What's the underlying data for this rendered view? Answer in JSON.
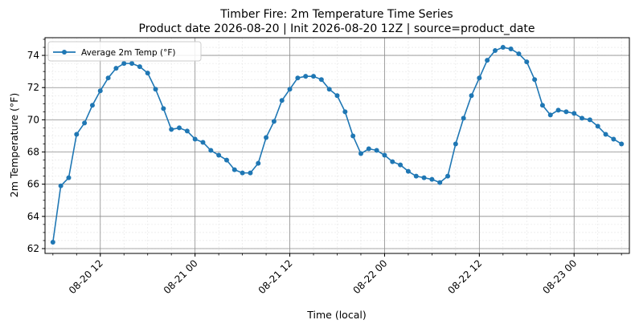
{
  "chart_data": {
    "type": "line",
    "title": "Timber Fire: 2m Temperature Time Series",
    "subtitle": "Product date 2026-08-20 | Init 2026-08-20 12Z | source=product_date",
    "xlabel": "Time (local)",
    "ylabel": "2m Temperature (°F)",
    "x_start": "2026-08-20 06:00",
    "x_step_hours": 1,
    "xlim": [
      "2026-08-20 05:00",
      "2026-08-23 07:00"
    ],
    "ylim": [
      61.7,
      75.1
    ],
    "x_ticks": [
      {
        "label": "08-20 12",
        "time": "2026-08-20 12:00"
      },
      {
        "label": "08-21 00",
        "time": "2026-08-21 00:00"
      },
      {
        "label": "08-21 12",
        "time": "2026-08-21 12:00"
      },
      {
        "label": "08-22 00",
        "time": "2026-08-22 00:00"
      },
      {
        "label": "08-22 12",
        "time": "2026-08-22 12:00"
      },
      {
        "label": "08-23 00",
        "time": "2026-08-23 00:00"
      }
    ],
    "y_ticks": [
      "62",
      "64",
      "66",
      "68",
      "70",
      "72",
      "74"
    ],
    "grid": true,
    "legend_position": "top-left",
    "series": [
      {
        "name": "Average 2m Temp (°F)",
        "color": "#1f77b4",
        "values": [
          62.4,
          65.9,
          66.4,
          69.1,
          69.8,
          70.9,
          71.8,
          72.6,
          73.2,
          73.5,
          73.5,
          73.3,
          72.9,
          71.9,
          70.7,
          69.4,
          69.5,
          69.3,
          68.8,
          68.6,
          68.1,
          67.8,
          67.5,
          66.9,
          66.7,
          66.7,
          67.3,
          68.9,
          69.9,
          71.2,
          71.9,
          72.6,
          72.7,
          72.7,
          72.5,
          71.9,
          71.5,
          70.5,
          69.0,
          67.9,
          68.2,
          68.1,
          67.8,
          67.4,
          67.2,
          66.8,
          66.5,
          66.4,
          66.3,
          66.1,
          66.5,
          68.5,
          70.1,
          71.5,
          72.6,
          73.7,
          74.3,
          74.5,
          74.4,
          74.1,
          73.6,
          72.5,
          70.9,
          70.3,
          70.6,
          70.5,
          70.4,
          70.1,
          70.0,
          69.6,
          69.1,
          68.8,
          68.5
        ]
      }
    ]
  }
}
